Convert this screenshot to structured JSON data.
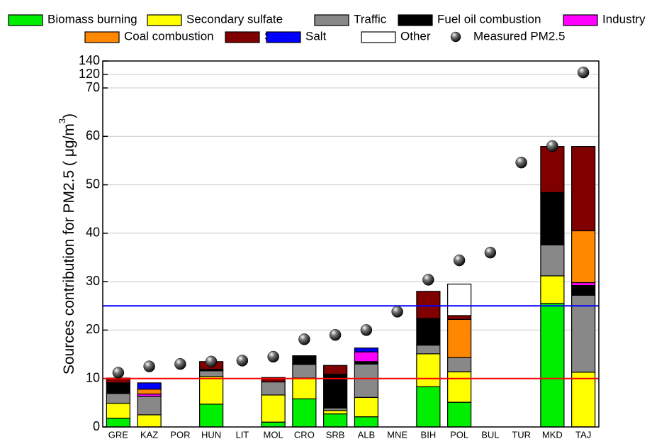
{
  "chart_data": {
    "type": "stacked_bar",
    "ylabel": [
      "Sources contribution for PM2.5 (  μg/m",
      "3",
      ")"
    ],
    "categories": [
      "GRE",
      "KAZ",
      "POR",
      "HUN",
      "LIT",
      "MOL",
      "CRO",
      "SRB",
      "ALB",
      "MNE",
      "BIH",
      "POL",
      "BUL",
      "TUR",
      "MKD",
      "TAJ"
    ],
    "series": [
      {
        "name": "Biomass burning",
        "color": "#00ee00",
        "values": [
          1.8,
          null,
          null,
          4.7,
          null,
          1.0,
          5.8,
          2.7,
          2.1,
          null,
          8.3,
          5.1,
          null,
          null,
          25.5,
          null
        ]
      },
      {
        "name": "Secondary sulfate",
        "color": "#ffff00",
        "values": [
          3.1,
          2.5,
          null,
          5.7,
          null,
          5.6,
          4.3,
          0.7,
          4.0,
          null,
          6.8,
          6.3,
          null,
          null,
          5.7,
          11.3
        ]
      },
      {
        "name": "Traffic",
        "color": "#888888",
        "values": [
          2.0,
          3.8,
          null,
          1.2,
          null,
          2.7,
          2.8,
          0.5,
          6.9,
          null,
          1.8,
          2.9,
          null,
          null,
          6.4,
          15.9
        ]
      },
      {
        "name": "Fuel oil combustion",
        "color": "#000000",
        "values": [
          2.2,
          null,
          null,
          0.3,
          null,
          null,
          1.8,
          7.0,
          0.5,
          null,
          5.5,
          null,
          null,
          null,
          10.8,
          2.0
        ]
      },
      {
        "name": "Industry",
        "color": "#ff00ff",
        "values": [
          null,
          0.5,
          null,
          null,
          null,
          null,
          null,
          null,
          2.0,
          null,
          null,
          null,
          null,
          null,
          null,
          0.6
        ]
      },
      {
        "name": "Coal combustion",
        "color": "#ff8800",
        "values": [
          null,
          1.0,
          null,
          null,
          null,
          null,
          null,
          null,
          null,
          null,
          null,
          7.9,
          null,
          null,
          null,
          10.7
        ]
      },
      {
        "name": "Soil",
        "color": "#800000",
        "values": [
          1.0,
          null,
          null,
          1.6,
          null,
          0.9,
          null,
          1.8,
          null,
          null,
          5.6,
          0.8,
          null,
          null,
          9.5,
          17.4
        ]
      },
      {
        "name": "Salt",
        "color": "#0000ff",
        "values": [
          null,
          1.3,
          null,
          null,
          null,
          null,
          null,
          null,
          0.8,
          null,
          null,
          null,
          null,
          null,
          null,
          null
        ]
      },
      {
        "name": "Other",
        "color": "#ffffff",
        "values": [
          null,
          null,
          null,
          null,
          null,
          null,
          null,
          null,
          null,
          null,
          null,
          6.5,
          null,
          null,
          null,
          null
        ]
      }
    ],
    "measured": {
      "name": "Measured PM2.5",
      "color": "#000000",
      "values": [
        11.2,
        12.5,
        13.0,
        13.5,
        13.7,
        14.5,
        18.1,
        19.0,
        20.0,
        23.8,
        30.4,
        34.4,
        36.0,
        54.6,
        58.0,
        123
      ]
    },
    "hlines": [
      {
        "value": 10,
        "color": "#ff0000"
      },
      {
        "value": 25,
        "color": "#0000ff"
      }
    ],
    "ylim": [
      0,
      140
    ],
    "yticks": [
      0,
      10,
      20,
      30,
      40,
      50,
      60,
      70,
      120,
      140
    ],
    "grid": true
  }
}
